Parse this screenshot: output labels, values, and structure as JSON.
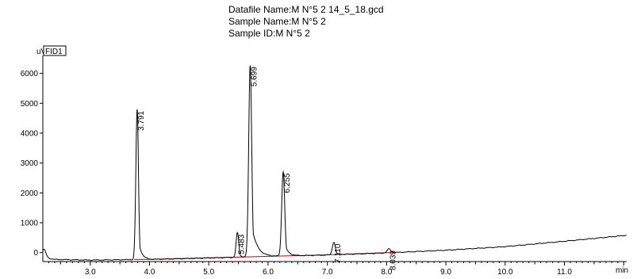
{
  "header": {
    "line1": "Datafile Name:M N°5 2 14_5_18.gcd",
    "line2": "Sample Name:M N°5 2",
    "line3": "Sample ID:M N°5 2"
  },
  "chart_data": {
    "type": "line",
    "ylabel": "uV",
    "xlabel": "min",
    "channel_label": "FID1",
    "xlim": [
      2.2,
      12.05
    ],
    "ylim": [
      -300,
      6600
    ],
    "x_ticks": [
      3.0,
      4.0,
      5.0,
      6.0,
      7.0,
      8.0,
      9.0,
      10.0,
      11.0
    ],
    "x_tick_labels": [
      "3.0",
      "4.0",
      "5.0",
      "6.0",
      "7.0",
      "8.0",
      "9.0",
      "10.0",
      "11.0"
    ],
    "y_ticks": [
      0,
      1000,
      2000,
      3000,
      4000,
      5000,
      6000
    ],
    "y_tick_labels": [
      "0",
      "1000",
      "2000",
      "3000",
      "4000",
      "5000",
      "6000"
    ],
    "baseline": [
      [
        2.2,
        -150
      ],
      [
        2.4,
        -230
      ],
      [
        3.0,
        -250
      ],
      [
        4.0,
        -230
      ],
      [
        5.0,
        -180
      ],
      [
        6.0,
        -130
      ],
      [
        7.0,
        -80
      ],
      [
        8.0,
        -10
      ],
      [
        9.0,
        80
      ],
      [
        10.0,
        200
      ],
      [
        11.0,
        380
      ],
      [
        12.05,
        580
      ]
    ],
    "peaks": [
      {
        "rt": 3.791,
        "label": "3.791",
        "height": 5030,
        "width": 0.022,
        "tail": 0.05
      },
      {
        "rt": 5.483,
        "label": "5.483",
        "height": 820,
        "width": 0.022,
        "tail": 0.04
      },
      {
        "rt": 5.699,
        "label": "5.699",
        "height": 6420,
        "width": 0.025,
        "tail": 0.09
      },
      {
        "rt": 6.255,
        "label": "6.255",
        "height": 2830,
        "width": 0.025,
        "tail": 0.06
      },
      {
        "rt": 7.11,
        "label": "7.110",
        "height": 420,
        "width": 0.025,
        "tail": 0.05
      },
      {
        "rt": 8.039,
        "label": "8.039",
        "height": 130,
        "width": 0.03,
        "tail": 0.04
      }
    ],
    "colors": {
      "trace": "#000000",
      "integration_baseline": "#cc0000"
    }
  }
}
